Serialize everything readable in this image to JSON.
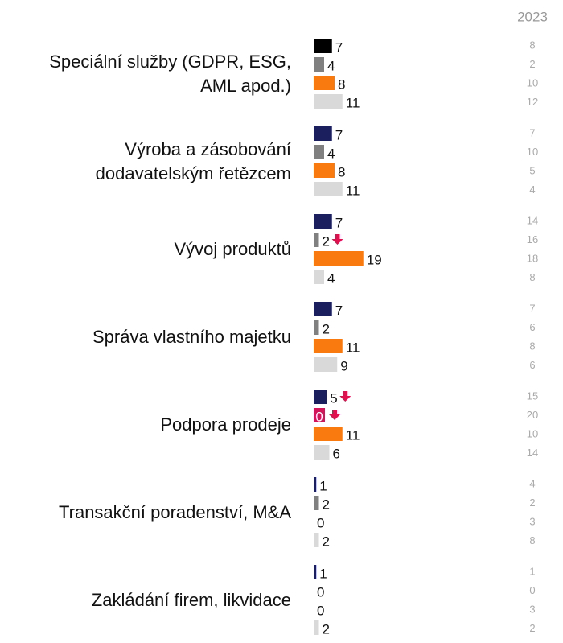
{
  "chart_data": {
    "type": "bar",
    "categories": [
      "Speciální služby (GDPR, ESG, AML apod.)",
      "Výroba a zásobování dodavatelským řetězcem",
      "Vývoj produktů",
      "Správa vlastního majetku",
      "Podpora prodeje",
      "Transakční poradenství, M&A",
      "Zakládání firem, likvidace"
    ],
    "series": [
      {
        "values": [
          7,
          7,
          7,
          7,
          5,
          1,
          1
        ],
        "color": "#1b1f5e",
        "colors": [
          "#000000",
          "#1b1f5e",
          "#1b1f5e",
          "#1b1f5e",
          "#1b1f5e",
          "#1b1f5e",
          "#1b1f5e"
        ]
      },
      {
        "values": [
          4,
          4,
          2,
          2,
          0,
          2,
          0
        ],
        "color": "#808080",
        "colors": [
          "#808080",
          "#808080",
          "#808080",
          "#808080",
          "#d4145a",
          "#808080",
          "#808080"
        ]
      },
      {
        "values": [
          8,
          8,
          19,
          11,
          11,
          0,
          0
        ],
        "color": "#f97a0f"
      },
      {
        "values": [
          11,
          11,
          4,
          9,
          6,
          2,
          2
        ],
        "color": "#d9d9d9"
      }
    ],
    "down_arrows": [
      [
        1,
        2
      ],
      [
        0,
        4
      ],
      [
        1,
        4
      ]
    ],
    "arrow_color": "#e0104f",
    "comparison": {
      "label": "2023",
      "values": [
        [
          8,
          2,
          10,
          12
        ],
        [
          7,
          10,
          5,
          4
        ],
        [
          14,
          16,
          18,
          8
        ],
        [
          7,
          6,
          8,
          6
        ],
        [
          15,
          20,
          10,
          14
        ],
        [
          4,
          2,
          3,
          8
        ],
        [
          1,
          0,
          3,
          2
        ]
      ]
    }
  }
}
